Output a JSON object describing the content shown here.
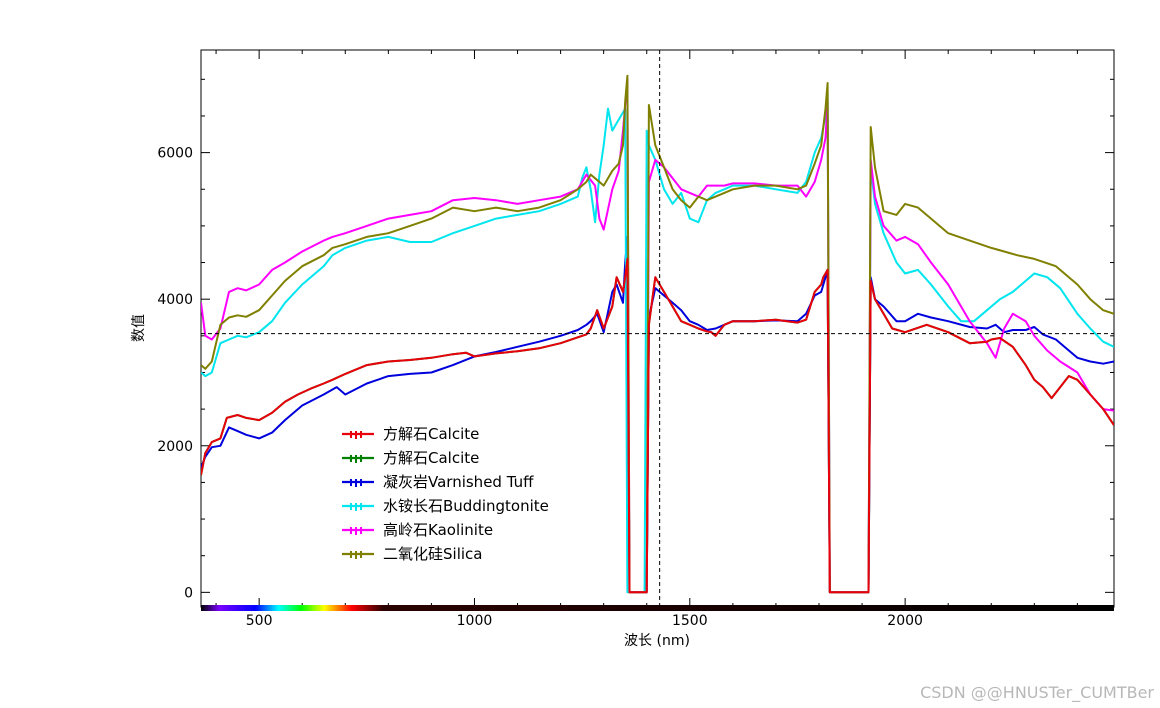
{
  "chart_data": {
    "type": "line",
    "xlabel": "波长 (nm)",
    "ylabel": "数值",
    "xlim": [
      365,
      2485
    ],
    "ylim": [
      -200,
      7400
    ],
    "x_ticks": [
      500,
      1000,
      1500,
      2000
    ],
    "y_ticks": [
      0,
      2000,
      4000,
      6000
    ],
    "grid": false,
    "legend_position": "lower-left",
    "crosshair": {
      "x": 1430,
      "y": 3530
    },
    "series": [
      {
        "name": "方解石Calcite",
        "color": "#e8000b",
        "x": [
          365,
          375,
          390,
          410,
          425,
          450,
          470,
          500,
          530,
          560,
          590,
          620,
          650,
          670,
          700,
          750,
          800,
          850,
          900,
          950,
          980,
          1000,
          1050,
          1100,
          1150,
          1200,
          1240,
          1260,
          1270,
          1285,
          1300,
          1320,
          1330,
          1345,
          1350,
          1355,
          1360,
          1395,
          1400,
          1405,
          1420,
          1440,
          1460,
          1480,
          1500,
          1520,
          1540,
          1550,
          1560,
          1580,
          1600,
          1650,
          1700,
          1750,
          1770,
          1790,
          1805,
          1810,
          1815,
          1820,
          1825,
          1915,
          1920,
          1930,
          1950,
          1970,
          2000,
          2050,
          2100,
          2150,
          2190,
          2200,
          2220,
          2250,
          2280,
          2300,
          2320,
          2340,
          2360,
          2380,
          2400,
          2430,
          2460,
          2485
        ],
        "y": [
          1600,
          1900,
          2050,
          2100,
          2380,
          2420,
          2380,
          2350,
          2450,
          2600,
          2700,
          2780,
          2850,
          2900,
          2980,
          3100,
          3150,
          3170,
          3200,
          3250,
          3270,
          3220,
          3260,
          3290,
          3330,
          3400,
          3480,
          3520,
          3600,
          3850,
          3600,
          3900,
          4300,
          4100,
          4300,
          4550,
          0,
          0,
          0,
          3650,
          4300,
          4100,
          3900,
          3700,
          3650,
          3600,
          3560,
          3550,
          3500,
          3650,
          3700,
          3700,
          3720,
          3680,
          3720,
          4100,
          4200,
          4300,
          4350,
          4400,
          0,
          0,
          4250,
          4000,
          3800,
          3600,
          3550,
          3650,
          3550,
          3400,
          3420,
          3450,
          3470,
          3350,
          3100,
          2900,
          2800,
          2650,
          2800,
          2950,
          2900,
          2700,
          2500,
          2280
        ]
      },
      {
        "name": "方解石Calcite",
        "color": "#008000",
        "x": [
          365,
          375,
          390,
          410,
          425,
          450,
          470,
          500,
          530,
          560,
          590,
          620,
          650,
          670,
          700,
          750,
          800,
          850,
          900,
          950,
          980,
          1000,
          1050,
          1100,
          1150,
          1200,
          1240,
          1260,
          1270,
          1285,
          1300,
          1320,
          1330,
          1345,
          1350,
          1355,
          1360,
          1395,
          1400,
          1405,
          1420,
          1440,
          1460,
          1480,
          1500,
          1520,
          1540,
          1550,
          1560,
          1580,
          1600,
          1650,
          1700,
          1750,
          1770,
          1790,
          1805,
          1810,
          1815,
          1820,
          1825,
          1915,
          1920,
          1930,
          1950,
          1970,
          2000,
          2050,
          2100,
          2150,
          2190,
          2200,
          2220,
          2250,
          2280,
          2300,
          2320,
          2340,
          2360,
          2380,
          2400,
          2430,
          2460,
          2485
        ],
        "y": [
          1600,
          1900,
          2050,
          2100,
          2380,
          2420,
          2380,
          2350,
          2450,
          2600,
          2700,
          2780,
          2850,
          2900,
          2980,
          3100,
          3150,
          3170,
          3200,
          3250,
          3270,
          3220,
          3260,
          3290,
          3330,
          3400,
          3480,
          3520,
          3600,
          3850,
          3600,
          3900,
          4300,
          4100,
          4300,
          4550,
          0,
          0,
          0,
          3650,
          4300,
          4100,
          3900,
          3700,
          3650,
          3600,
          3560,
          3550,
          3500,
          3650,
          3700,
          3700,
          3720,
          3680,
          3720,
          4100,
          4200,
          4300,
          4350,
          4400,
          0,
          0,
          4250,
          4000,
          3800,
          3600,
          3550,
          3650,
          3550,
          3400,
          3420,
          3450,
          3470,
          3350,
          3100,
          2900,
          2800,
          2650,
          2800,
          2950,
          2900,
          2700,
          2500,
          2280
        ]
      },
      {
        "name": "凝灰岩Varnished Tuff",
        "color": "#0000dd",
        "x": [
          365,
          375,
          390,
          410,
          430,
          450,
          470,
          500,
          530,
          560,
          600,
          650,
          680,
          700,
          750,
          800,
          850,
          900,
          950,
          1000,
          1050,
          1100,
          1150,
          1200,
          1240,
          1260,
          1270,
          1285,
          1300,
          1320,
          1330,
          1345,
          1350,
          1355,
          1360,
          1395,
          1400,
          1405,
          1420,
          1440,
          1460,
          1480,
          1500,
          1520,
          1540,
          1560,
          1580,
          1600,
          1650,
          1700,
          1750,
          1770,
          1790,
          1805,
          1815,
          1820,
          1825,
          1915,
          1920,
          1930,
          1950,
          1980,
          2000,
          2030,
          2060,
          2100,
          2150,
          2190,
          2210,
          2230,
          2250,
          2280,
          2300,
          2320,
          2350,
          2380,
          2400,
          2430,
          2460,
          2485
        ],
        "y": [
          1700,
          1850,
          1980,
          2000,
          2250,
          2200,
          2150,
          2100,
          2180,
          2350,
          2550,
          2700,
          2800,
          2700,
          2850,
          2950,
          2980,
          3000,
          3100,
          3220,
          3280,
          3350,
          3420,
          3500,
          3580,
          3650,
          3700,
          3800,
          3550,
          4100,
          4200,
          3950,
          4500,
          4850,
          0,
          0,
          0,
          3750,
          4150,
          4050,
          3950,
          3850,
          3700,
          3650,
          3580,
          3600,
          3650,
          3700,
          3700,
          3710,
          3700,
          3800,
          4050,
          4100,
          4300,
          4400,
          0,
          0,
          4300,
          4000,
          3900,
          3700,
          3700,
          3800,
          3750,
          3700,
          3620,
          3600,
          3650,
          3550,
          3580,
          3580,
          3620,
          3520,
          3450,
          3300,
          3200,
          3150,
          3120,
          3150
        ]
      },
      {
        "name": "水铵长石Buddingtonite",
        "color": "#00e5ee",
        "x": [
          365,
          375,
          390,
          410,
          430,
          450,
          470,
          500,
          530,
          560,
          600,
          650,
          670,
          700,
          750,
          800,
          850,
          900,
          950,
          1000,
          1050,
          1100,
          1150,
          1200,
          1240,
          1250,
          1260,
          1270,
          1280,
          1290,
          1300,
          1310,
          1320,
          1330,
          1340,
          1350,
          1355,
          1360,
          1395,
          1400,
          1405,
          1420,
          1440,
          1460,
          1480,
          1500,
          1520,
          1540,
          1560,
          1580,
          1600,
          1650,
          1700,
          1750,
          1770,
          1790,
          1805,
          1815,
          1820,
          1825,
          1915,
          1920,
          1930,
          1950,
          1980,
          2000,
          2030,
          2060,
          2100,
          2130,
          2160,
          2190,
          2220,
          2250,
          2280,
          2300,
          2330,
          2360,
          2400,
          2430,
          2460,
          2485
        ],
        "y": [
          3000,
          2950,
          3000,
          3400,
          3450,
          3500,
          3480,
          3550,
          3700,
          3950,
          4200,
          4450,
          4600,
          4700,
          4800,
          4850,
          4780,
          4780,
          4900,
          5000,
          5100,
          5150,
          5200,
          5300,
          5400,
          5650,
          5800,
          5500,
          5050,
          5700,
          6100,
          6600,
          6300,
          6400,
          6500,
          6600,
          0,
          0,
          0,
          6300,
          6100,
          5900,
          5500,
          5300,
          5450,
          5100,
          5050,
          5350,
          5450,
          5500,
          5550,
          5550,
          5500,
          5450,
          5600,
          6000,
          6200,
          6500,
          6800,
          0,
          0,
          5800,
          5300,
          4900,
          4500,
          4350,
          4400,
          4200,
          3900,
          3700,
          3700,
          3850,
          4000,
          4100,
          4250,
          4350,
          4300,
          4150,
          3800,
          3600,
          3420,
          3350
        ]
      },
      {
        "name": "高岭石Kaolinite",
        "color": "#ff00ff",
        "x": [
          365,
          375,
          390,
          410,
          430,
          450,
          470,
          500,
          530,
          560,
          600,
          650,
          670,
          700,
          750,
          800,
          850,
          900,
          950,
          1000,
          1050,
          1100,
          1150,
          1200,
          1240,
          1260,
          1280,
          1290,
          1300,
          1320,
          1335,
          1345,
          1350,
          1355,
          1360,
          1395,
          1400,
          1405,
          1420,
          1440,
          1460,
          1480,
          1500,
          1520,
          1540,
          1560,
          1580,
          1600,
          1650,
          1700,
          1750,
          1770,
          1790,
          1805,
          1815,
          1820,
          1825,
          1915,
          1920,
          1930,
          1950,
          1980,
          2000,
          2030,
          2060,
          2100,
          2150,
          2170,
          2190,
          2200,
          2210,
          2230,
          2250,
          2280,
          2300,
          2330,
          2360,
          2400,
          2430,
          2460,
          2485
        ],
        "y": [
          3950,
          3500,
          3450,
          3600,
          4100,
          4150,
          4120,
          4200,
          4400,
          4500,
          4650,
          4800,
          4850,
          4900,
          5000,
          5100,
          5150,
          5200,
          5350,
          5380,
          5350,
          5300,
          5350,
          5400,
          5500,
          5700,
          5550,
          5100,
          4950,
          5500,
          5750,
          6300,
          6650,
          7000,
          0,
          0,
          0,
          5600,
          5900,
          5800,
          5650,
          5500,
          5450,
          5400,
          5550,
          5550,
          5550,
          5580,
          5580,
          5550,
          5550,
          5400,
          5600,
          5900,
          6200,
          6700,
          0,
          0,
          5900,
          5400,
          5000,
          4800,
          4850,
          4750,
          4500,
          4200,
          3700,
          3550,
          3400,
          3300,
          3200,
          3600,
          3800,
          3700,
          3500,
          3300,
          3150,
          3000,
          2700,
          2500,
          2480
        ]
      },
      {
        "name": "二氧化硅Silica",
        "color": "#808000",
        "x": [
          365,
          375,
          390,
          410,
          430,
          450,
          470,
          500,
          530,
          560,
          600,
          650,
          670,
          700,
          750,
          800,
          850,
          900,
          950,
          1000,
          1050,
          1100,
          1150,
          1200,
          1240,
          1260,
          1270,
          1280,
          1290,
          1300,
          1320,
          1335,
          1345,
          1350,
          1355,
          1360,
          1395,
          1400,
          1405,
          1420,
          1440,
          1460,
          1480,
          1500,
          1520,
          1540,
          1560,
          1580,
          1600,
          1650,
          1700,
          1750,
          1770,
          1790,
          1805,
          1815,
          1820,
          1825,
          1915,
          1920,
          1930,
          1950,
          1980,
          2000,
          2030,
          2060,
          2100,
          2150,
          2200,
          2230,
          2260,
          2300,
          2350,
          2400,
          2430,
          2460,
          2485
        ],
        "y": [
          3100,
          3050,
          3150,
          3650,
          3750,
          3780,
          3760,
          3850,
          4050,
          4250,
          4450,
          4600,
          4700,
          4750,
          4850,
          4900,
          5000,
          5100,
          5250,
          5200,
          5250,
          5200,
          5250,
          5350,
          5500,
          5600,
          5700,
          5650,
          5600,
          5550,
          5750,
          5850,
          6100,
          6700,
          7050,
          0,
          0,
          0,
          6650,
          6100,
          5800,
          5500,
          5350,
          5250,
          5400,
          5350,
          5400,
          5450,
          5500,
          5550,
          5550,
          5500,
          5550,
          5850,
          6100,
          6600,
          6950,
          0,
          0,
          6350,
          5800,
          5200,
          5150,
          5300,
          5250,
          5100,
          4900,
          4800,
          4700,
          4650,
          4600,
          4550,
          4450,
          4200,
          4000,
          3850,
          3800
        ]
      }
    ]
  }
}
